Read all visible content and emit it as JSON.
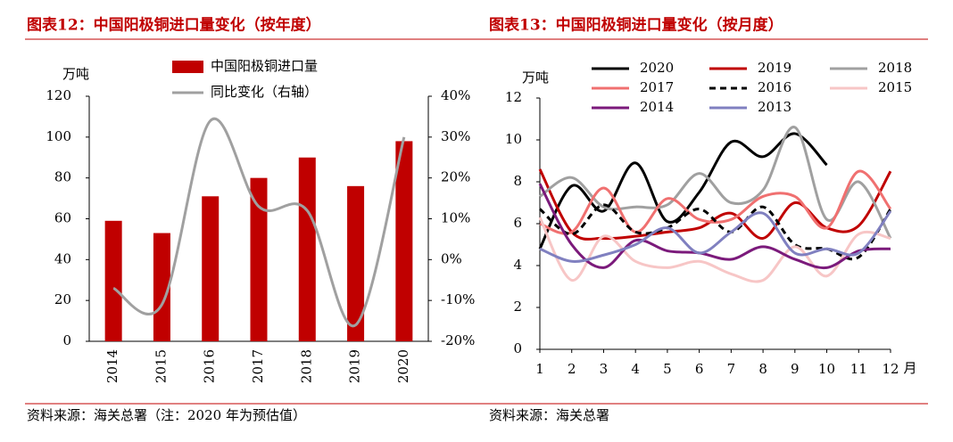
{
  "chart_data": [
    {
      "type": "bar",
      "title": "图表12：中国阳极铜进口量变化（按年度）",
      "y_label": "万吨",
      "source": "资料来源：海关总署（注：2020 年为预估值）",
      "categories": [
        "2014",
        "2015",
        "2016",
        "2017",
        "2018",
        "2019",
        "2020"
      ],
      "series": [
        {
          "name": "中国阳极铜进口量",
          "type": "bar",
          "color": "#c00000",
          "values": [
            59,
            53,
            71,
            80,
            90,
            76,
            98
          ]
        },
        {
          "name": "同比变化（右轴）",
          "type": "line",
          "smooth": true,
          "axis": "y2",
          "color": "#a0a0a0",
          "values": [
            -7,
            -11,
            34,
            13,
            12,
            -16,
            30
          ]
        }
      ],
      "ylim": [
        0,
        120
      ],
      "yticks": [
        0,
        20,
        40,
        60,
        80,
        100,
        120
      ],
      "y2lim": [
        -20,
        40
      ],
      "y2ticks": [
        {
          "value": -20,
          "label": "-20%"
        },
        {
          "value": -10,
          "label": "-10%"
        },
        {
          "value": 0,
          "label": "0%"
        },
        {
          "value": 10,
          "label": "10%"
        },
        {
          "value": 20,
          "label": "20%"
        },
        {
          "value": 30,
          "label": "30%"
        },
        {
          "value": 40,
          "label": "40%"
        }
      ],
      "legend": "top"
    },
    {
      "type": "line",
      "title": "图表13：中国阳极铜进口量变化（按月度）",
      "y_label": "万吨",
      "x_label": "月",
      "source": "资料来源：海关总署",
      "smooth": true,
      "x": [
        1,
        2,
        3,
        4,
        5,
        6,
        7,
        8,
        9,
        10,
        11,
        12
      ],
      "xlim": [
        1,
        12
      ],
      "xticks": [
        1,
        2,
        3,
        4,
        5,
        6,
        7,
        8,
        9,
        10,
        11,
        12
      ],
      "ylim": [
        0,
        12
      ],
      "yticks": [
        0,
        2,
        4,
        6,
        8,
        10,
        12
      ],
      "series": [
        {
          "name": "2020",
          "color": "#000000",
          "values": [
            4.8,
            7.8,
            6.6,
            8.9,
            6.1,
            7.5,
            9.9,
            9.2,
            10.3,
            8.8,
            null,
            null
          ]
        },
        {
          "name": "2019",
          "color": "#c00000",
          "values": [
            8.6,
            5.6,
            5.3,
            5.4,
            5.6,
            5.8,
            6.5,
            5.3,
            7.0,
            5.8,
            5.9,
            8.5
          ]
        },
        {
          "name": "2018",
          "color": "#a0a0a0",
          "values": [
            7.3,
            8.2,
            6.8,
            6.8,
            6.9,
            8.4,
            7.0,
            7.6,
            10.6,
            6.2,
            8.0,
            5.3
          ]
        },
        {
          "name": "2017",
          "color": "#f07070",
          "values": [
            6.0,
            5.6,
            7.7,
            5.6,
            7.2,
            6.2,
            6.2,
            7.3,
            7.3,
            5.8,
            8.5,
            6.7
          ]
        },
        {
          "name": "2016",
          "color": "#000000",
          "dash": true,
          "values": [
            6.7,
            5.5,
            6.9,
            5.6,
            5.8,
            6.7,
            5.6,
            6.8,
            5.0,
            4.8,
            4.4,
            6.7
          ]
        },
        {
          "name": "2015",
          "color": "#f7c6c6",
          "values": [
            6.3,
            3.3,
            5.4,
            4.2,
            3.9,
            4.2,
            3.6,
            3.3,
            4.9,
            3.5,
            5.5,
            5.3
          ]
        },
        {
          "name": "2014",
          "color": "#7b1a7b",
          "values": [
            7.9,
            5.0,
            3.9,
            5.2,
            4.7,
            4.6,
            4.3,
            4.9,
            4.3,
            3.9,
            4.7,
            4.8
          ]
        },
        {
          "name": "2013",
          "color": "#8080c0",
          "values": [
            4.8,
            4.2,
            4.5,
            5.0,
            5.8,
            4.6,
            5.6,
            6.5,
            4.6,
            4.8,
            4.6,
            6.6
          ]
        }
      ],
      "legend": "top"
    }
  ]
}
